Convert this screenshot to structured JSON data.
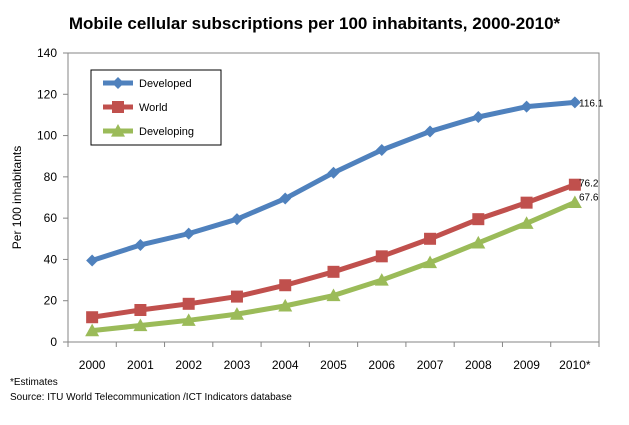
{
  "chart_data": {
    "type": "line",
    "title": "Mobile cellular subscriptions per 100 inhabitants,  2000-2010*",
    "xlabel": "",
    "ylabel": "Per 100 inhabitants",
    "categories": [
      "2000",
      "2001",
      "2002",
      "2003",
      "2004",
      "2005",
      "2006",
      "2007",
      "2008",
      "2009",
      "2010*"
    ],
    "ylim": [
      0,
      140
    ],
    "yticks": [
      0,
      20,
      40,
      60,
      80,
      100,
      120,
      140
    ],
    "grid": false,
    "legend_position": "top-left",
    "series": [
      {
        "name": "Developed",
        "color": "#4F81BD",
        "marker": "diamond",
        "values": [
          39.5,
          47,
          52.5,
          59.5,
          69.5,
          82,
          93,
          102,
          109,
          114,
          116.1
        ],
        "end_label": "116.1"
      },
      {
        "name": "World",
        "color": "#C0504D",
        "marker": "square",
        "values": [
          12,
          15.5,
          18.5,
          22,
          27.5,
          34,
          41.5,
          50,
          59.5,
          67.5,
          76.2
        ],
        "end_label": "76.2"
      },
      {
        "name": "Developing",
        "color": "#9BBB59",
        "marker": "triangle",
        "values": [
          5.5,
          8,
          10.5,
          13.5,
          17.5,
          22.5,
          30,
          38.5,
          48,
          57.5,
          67.6
        ],
        "end_label": "67.6"
      }
    ]
  },
  "notes": {
    "estimates": "*Estimates",
    "source": "Source:  ITU World Telecommunication /ICT Indicators database"
  }
}
